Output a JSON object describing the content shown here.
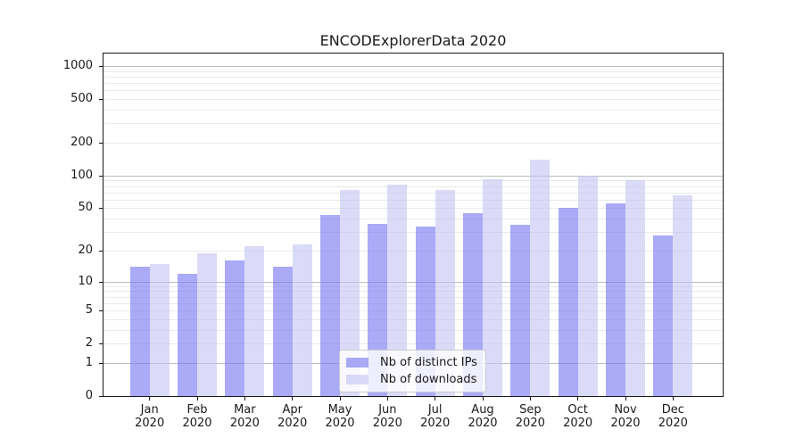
{
  "window": {
    "background": "#ffffff"
  },
  "chart_data": {
    "type": "bar",
    "title": "ENCODExplorerData 2020",
    "categories": [
      "Jan",
      "Feb",
      "Mar",
      "Apr",
      "May",
      "Jun",
      "Jul",
      "Aug",
      "Sep",
      "Oct",
      "Nov",
      "Dec"
    ],
    "x_year": "2020",
    "series": [
      {
        "name": "Nb of distinct IPs",
        "fill": "rgba(126,126,243,0.66)",
        "solid_hex": "#a9a9f6",
        "values": [
          14,
          12,
          16,
          14,
          43,
          36,
          34,
          45,
          35,
          50,
          55,
          28
        ]
      },
      {
        "name": "Nb of downloads",
        "fill": "rgba(197,197,243,0.62)",
        "solid_hex": "#dcdcf8",
        "values": [
          15,
          19,
          22,
          23,
          74,
          82,
          73,
          93,
          139,
          100,
          90,
          66
        ]
      }
    ],
    "y_axis": {
      "scale": "log1p",
      "min": 0,
      "max": 1000,
      "ticks": [
        0,
        1,
        2,
        5,
        10,
        20,
        50,
        100,
        200,
        500,
        1000
      ],
      "major_gridlines": [
        1,
        10,
        100,
        1000
      ],
      "minor_gridlines": [
        2,
        3,
        4,
        5,
        6,
        7,
        8,
        9,
        20,
        30,
        40,
        50,
        60,
        70,
        80,
        90,
        200,
        300,
        400,
        500,
        600,
        700,
        800,
        900
      ]
    },
    "legend": {
      "position": "lower-center"
    },
    "grid": true,
    "style": {
      "grid_major": "#bdbdbd",
      "grid_minor": "#eaeaea",
      "spine": "#1a1a1a",
      "text": "#1a1a1a"
    }
  }
}
